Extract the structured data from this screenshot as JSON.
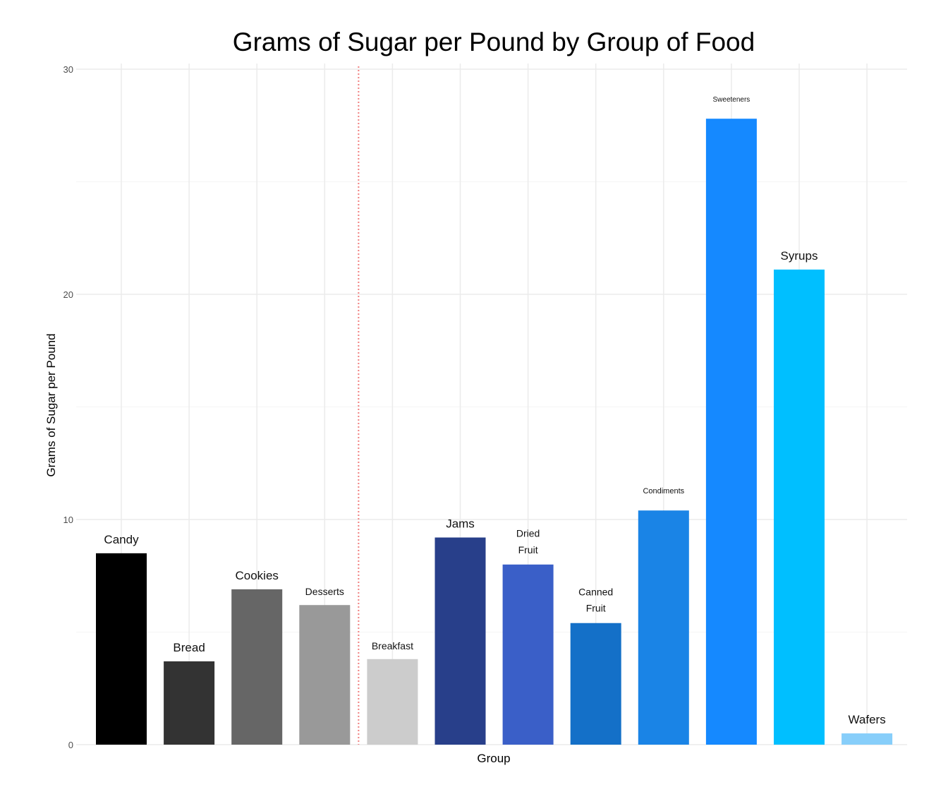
{
  "chart_data": {
    "type": "bar",
    "title": "Grams of Sugar per Pound by Group of Food",
    "xlabel": "Group",
    "ylabel": "Grams of Sugar per Pound",
    "ylim": [
      0,
      30
    ],
    "yticks": [
      0,
      10,
      20,
      30
    ],
    "grid": true,
    "categories": [
      "Candy",
      "Bread",
      "Cookies",
      "Desserts",
      "Breakfast",
      "Jams",
      "Dried Fruit",
      "Canned Fruit",
      "Condiments",
      "Sweeteners",
      "Syrups",
      "Wafers"
    ],
    "values": [
      8.5,
      3.7,
      6.9,
      6.2,
      3.8,
      9.2,
      8.0,
      5.4,
      10.4,
      27.8,
      21.1,
      0.5
    ],
    "colors": [
      "#000000",
      "#333333",
      "#666666",
      "#999999",
      "#cccccc",
      "#283f8a",
      "#3a5fc8",
      "#1470c8",
      "#1a84e6",
      "#1589ff",
      "#00bfff",
      "#87cefa"
    ],
    "reference_line": {
      "between": [
        "Desserts",
        "Breakfast"
      ],
      "color": "#f08080",
      "style": "dotted"
    }
  }
}
